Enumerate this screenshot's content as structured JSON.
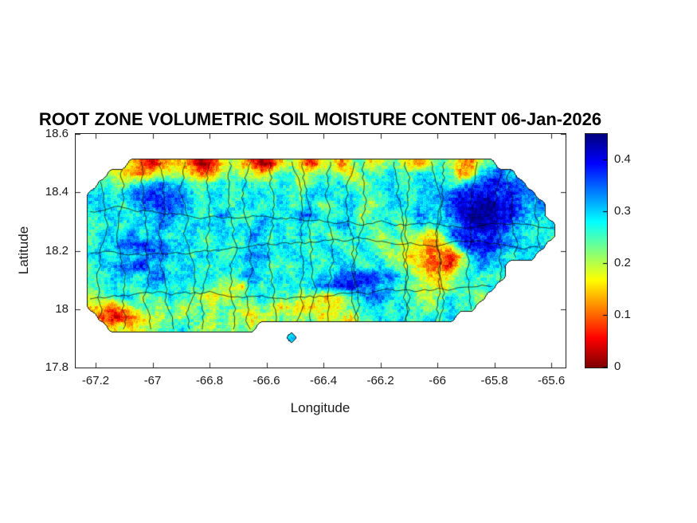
{
  "figure": {
    "title": "ROOT ZONE VOLUMETRIC SOIL MOISTURE CONTENT 06-Jan-2026",
    "background_color": "#ffffff"
  },
  "axes": {
    "xlabel": "Longitude",
    "ylabel": "Latitude",
    "xlim": [
      -67.27,
      -65.55
    ],
    "ylim": [
      17.8,
      18.6
    ],
    "xticks": [
      {
        "value": -67.2,
        "label": "-67.2"
      },
      {
        "value": -67.0,
        "label": "-67"
      },
      {
        "value": -66.8,
        "label": "-66.8"
      },
      {
        "value": -66.6,
        "label": "-66.6"
      },
      {
        "value": -66.4,
        "label": "-66.4"
      },
      {
        "value": -66.2,
        "label": "-66.2"
      },
      {
        "value": -66.0,
        "label": "-66"
      },
      {
        "value": -65.8,
        "label": "-65.8"
      },
      {
        "value": -65.6,
        "label": "-65.6"
      }
    ],
    "yticks": [
      {
        "value": 18.6,
        "label": "18.6"
      },
      {
        "value": 18.4,
        "label": "18.4"
      },
      {
        "value": 18.2,
        "label": "18.2"
      },
      {
        "value": 18.0,
        "label": "18"
      },
      {
        "value": 17.8,
        "label": "17.8"
      }
    ]
  },
  "colorbar": {
    "min": 0,
    "max": 0.45,
    "colormap": "jet-reversed",
    "ticks": [
      {
        "value": 0.4,
        "label": "0.4"
      },
      {
        "value": 0.3,
        "label": "0.3"
      },
      {
        "value": 0.2,
        "label": "0.2"
      },
      {
        "value": 0.1,
        "label": "0.1"
      },
      {
        "value": 0,
        "label": "0"
      }
    ]
  },
  "chart_data": {
    "type": "heatmap",
    "title": "ROOT ZONE VOLUMETRIC SOIL MOISTURE CONTENT 06-Jan-2026",
    "date": "06-Jan-2026",
    "region": "Puerto Rico",
    "xlabel": "Longitude",
    "ylabel": "Latitude",
    "xlim": [
      -67.27,
      -65.55
    ],
    "ylim": [
      17.8,
      18.6
    ],
    "value_range": [
      0,
      0.45
    ],
    "colormap": "jet-reversed",
    "overlays": [
      "municipality-boundaries",
      "coastline"
    ],
    "grid": {
      "lon_start": -67.3,
      "lat_start": 18.55,
      "cell_deg": 0.035,
      "cols": 50,
      "rows": 20,
      "value_per_digit": 0.05,
      "note": "segments = [row, startCol, digits]; soil moisture value = digit * 0.05; rows run north-to-south from lat_start, cols west-to-east from lon_start; cells not covered are ocean",
      "segments": [
        [
          1,
          6,
          "3212332013432013431342453454324543245"
        ],
        [
          2,
          4,
          "43323444322454434554455435556556655236776"
        ],
        [
          3,
          3,
          "5545667665556565556545656545665566656778877"
        ],
        [
          4,
          2,
          "665677877765665566565566656555665667788887877"
        ],
        [
          5,
          2,
          "6665677877656556655655645665456656667889988767"
        ],
        [
          6,
          2,
          "5666566776655765566567765564565567667899988766"
        ],
        [
          7,
          2,
          "55656667656666565766565567655564565667898876656"
        ],
        [
          8,
          2,
          "56667566566556657656565645655455443478878766565"
        ],
        [
          9,
          2,
          "5667787766655655665665566556545443234788877666"
        ],
        [
          10,
          2,
          "665666776656655677656655665565443322136776566"
        ],
        [
          11,
          2,
          "566778665665566566555665566556544322145766"
        ],
        [
          12,
          2,
          "556665776665655676565656677887765433456555"
        ],
        [
          13,
          2,
          "55655666565654436565656778877665544345556"
        ],
        [
          14,
          2,
          "4556645565543445565554433456776554456554"
        ],
        [
          15,
          2,
          "332345545445455445434334345566565545655"
        ],
        [
          16,
          3,
          "211234454554544344544534435565655656"
        ],
        [
          17,
          4,
          "343445565445454"
        ],
        [
          18,
          22,
          "6"
        ]
      ]
    }
  }
}
